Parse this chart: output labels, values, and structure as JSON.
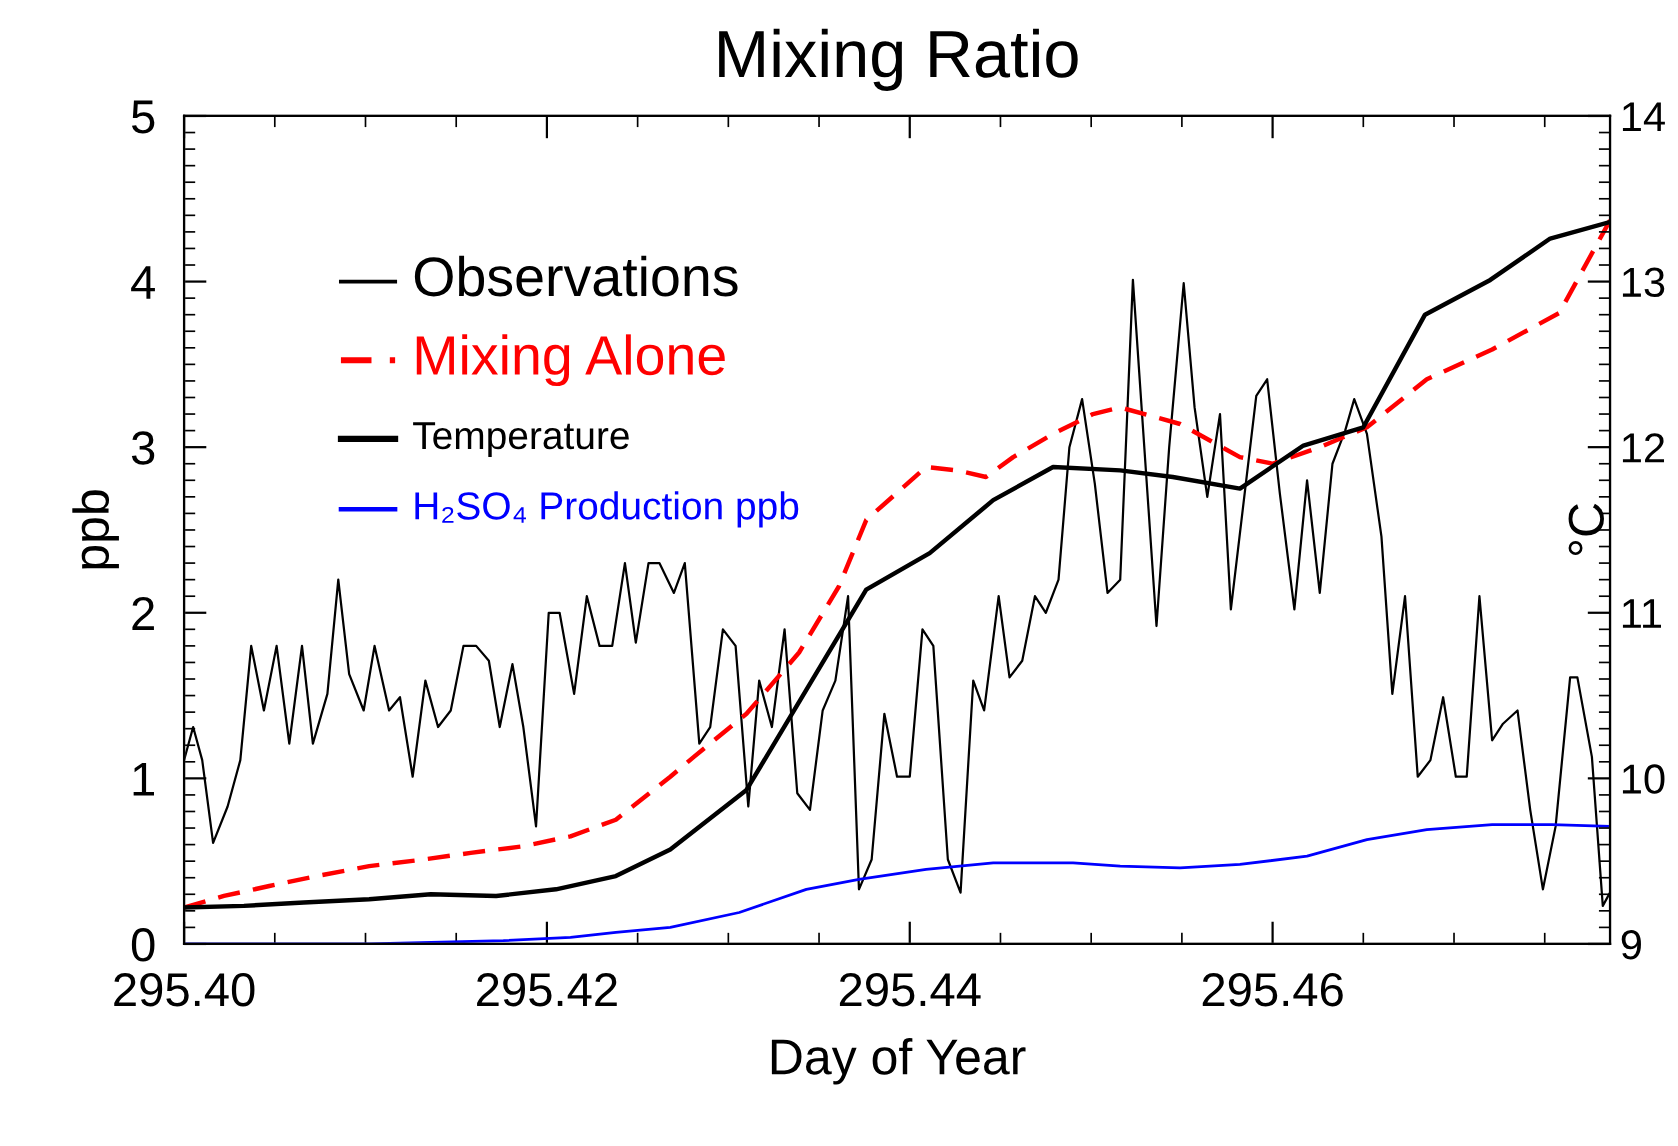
{
  "chart_data": {
    "type": "line",
    "title": "Mixing Ratio",
    "xlabel": "Day of Year",
    "ylabel": "ppb",
    "y2label": "°C",
    "xlim": [
      295.4,
      295.4786
    ],
    "xticks": [
      {
        "value": 295.4,
        "label": "295.40"
      },
      {
        "value": 295.42,
        "label": "295.42"
      },
      {
        "value": 295.44,
        "label": "295.44"
      },
      {
        "value": 295.46,
        "label": "295.46"
      }
    ],
    "ylim": [
      0,
      5
    ],
    "yticks": [
      0,
      1,
      2,
      3,
      4,
      5
    ],
    "y2lim": [
      9,
      14
    ],
    "y2ticks": [
      9,
      10,
      11,
      12,
      13,
      14
    ],
    "legend": "top left",
    "grid": false,
    "series": [
      {
        "name": "Observations",
        "color": "#000000",
        "line_style": "solid",
        "x": [
          295.4,
          295.4005,
          295.401,
          295.4016,
          295.4024,
          295.4031,
          295.4037,
          295.4044,
          295.4051,
          295.4058,
          295.4065,
          295.4071,
          295.4079,
          295.4085,
          295.4091,
          295.4099,
          295.4105,
          295.4113,
          295.4119,
          295.4126,
          295.4133,
          295.414,
          295.4147,
          295.4154,
          295.4161,
          295.4168,
          295.4174,
          295.4181,
          295.4187,
          295.4194,
          295.4201,
          295.4207,
          295.4215,
          295.4222,
          295.4229,
          295.4236,
          295.4243,
          295.4249,
          295.4256,
          295.4262,
          295.427,
          295.4276,
          295.4284,
          295.429,
          295.4297,
          295.4304,
          295.4311,
          295.4317,
          295.4324,
          295.4331,
          295.4338,
          295.4345,
          295.4352,
          295.4359,
          295.4366,
          295.4372,
          295.4379,
          295.4386,
          295.4393,
          295.44,
          295.4407,
          295.4413,
          295.4421,
          295.4428,
          295.4435,
          295.4441,
          295.4449,
          295.4455,
          295.4462,
          295.4469,
          295.4475,
          295.4482,
          295.4488,
          295.4495,
          295.4502,
          295.4509,
          295.4516,
          295.4523,
          295.4536,
          295.4543,
          295.4551,
          295.4557,
          295.4564,
          295.4571,
          295.4577,
          295.4591,
          295.4597,
          295.4604,
          295.4612,
          295.4619,
          295.4626,
          295.4633,
          295.464,
          295.4645,
          295.4652,
          295.466,
          295.4666,
          295.4673,
          295.468,
          295.4687,
          295.4694,
          295.4701,
          295.4707,
          295.4714,
          295.4721,
          295.4727,
          295.4735,
          295.4742,
          295.4749,
          295.4756,
          295.4764,
          295.4768,
          295.4776,
          295.4782,
          295.4786
        ],
        "values": [
          1.11,
          1.31,
          1.11,
          0.61,
          0.83,
          1.11,
          1.8,
          1.41,
          1.8,
          1.21,
          1.8,
          1.21,
          1.51,
          2.2,
          1.63,
          1.41,
          1.8,
          1.41,
          1.49,
          1.01,
          1.59,
          1.31,
          1.41,
          1.8,
          1.8,
          1.71,
          1.31,
          1.69,
          1.31,
          0.71,
          2.0,
          2.0,
          1.51,
          2.1,
          1.8,
          1.8,
          2.3,
          1.82,
          2.3,
          2.3,
          2.12,
          2.3,
          1.21,
          1.31,
          1.9,
          1.8,
          0.83,
          1.59,
          1.31,
          1.9,
          0.91,
          0.81,
          1.41,
          1.59,
          2.1,
          0.33,
          0.51,
          1.39,
          1.01,
          1.01,
          1.9,
          1.8,
          0.51,
          0.31,
          1.59,
          1.41,
          2.1,
          1.61,
          1.71,
          2.1,
          2.0,
          2.2,
          3.0,
          3.29,
          2.78,
          2.12,
          2.2,
          4.01,
          1.92,
          3.0,
          3.99,
          3.24,
          2.7,
          3.2,
          2.02,
          3.31,
          3.41,
          2.72,
          2.02,
          2.8,
          2.12,
          2.9,
          3.1,
          3.29,
          3.08,
          2.46,
          1.51,
          2.1,
          1.01,
          1.11,
          1.49,
          1.01,
          1.01,
          2.1,
          1.23,
          1.33,
          1.41,
          0.81,
          0.33,
          0.71,
          1.61,
          1.61,
          1.13,
          0.23,
          0.31
        ]
      },
      {
        "name": "Mixing Alone",
        "color": "#ff0000",
        "line_style": "dashed",
        "x": [
          295.4,
          295.4022,
          295.4047,
          295.4073,
          295.4102,
          295.4132,
          295.4158,
          295.4187,
          295.4213,
          295.4238,
          295.4268,
          295.4281,
          295.431,
          295.4339,
          295.4361,
          295.4376,
          295.4409,
          295.4426,
          295.4442,
          295.4457,
          295.4479,
          295.4501,
          295.4516,
          295.4549,
          295.4582,
          295.46,
          295.4626,
          295.4652,
          295.4685,
          295.4721,
          295.4758,
          295.4786
        ],
        "values": [
          0.22,
          0.29,
          0.35,
          0.41,
          0.47,
          0.51,
          0.55,
          0.59,
          0.65,
          0.75,
          1.01,
          1.13,
          1.39,
          1.76,
          2.16,
          2.56,
          2.88,
          2.86,
          2.82,
          2.94,
          3.08,
          3.2,
          3.24,
          3.14,
          2.94,
          2.9,
          3.0,
          3.12,
          3.41,
          3.59,
          3.81,
          4.37
        ]
      },
      {
        "name": "Temperature",
        "color": "#000000",
        "line_style": "solid",
        "axis": "y2",
        "x": [
          295.4,
          295.4033,
          295.4066,
          295.4102,
          295.4136,
          295.4172,
          295.4205,
          295.4238,
          295.4268,
          295.431,
          295.4376,
          295.4411,
          295.4446,
          295.4479,
          295.4516,
          295.4545,
          295.4582,
          295.4617,
          295.465,
          295.4684,
          295.472,
          295.4753,
          295.4786
        ],
        "values": [
          9.22,
          9.23,
          9.25,
          9.27,
          9.3,
          9.29,
          9.33,
          9.41,
          9.57,
          9.93,
          11.14,
          11.36,
          11.68,
          11.88,
          11.86,
          11.82,
          11.75,
          12.01,
          12.12,
          12.8,
          13.01,
          13.26,
          13.36
        ]
      },
      {
        "name": "H₂SO₄ Production ppb",
        "color": "#0000ff",
        "line_style": "solid",
        "x": [
          295.4,
          295.4102,
          295.4176,
          295.4213,
          295.4238,
          295.4268,
          295.4306,
          295.4343,
          295.4372,
          295.4409,
          295.4446,
          295.449,
          295.4516,
          295.4549,
          295.4582,
          295.4619,
          295.4652,
          295.4685,
          295.4721,
          295.4754,
          295.4786
        ],
        "values": [
          0.0,
          0.0,
          0.02,
          0.04,
          0.07,
          0.1,
          0.19,
          0.33,
          0.39,
          0.45,
          0.49,
          0.49,
          0.47,
          0.46,
          0.48,
          0.53,
          0.63,
          0.69,
          0.72,
          0.72,
          0.71
        ]
      }
    ]
  }
}
